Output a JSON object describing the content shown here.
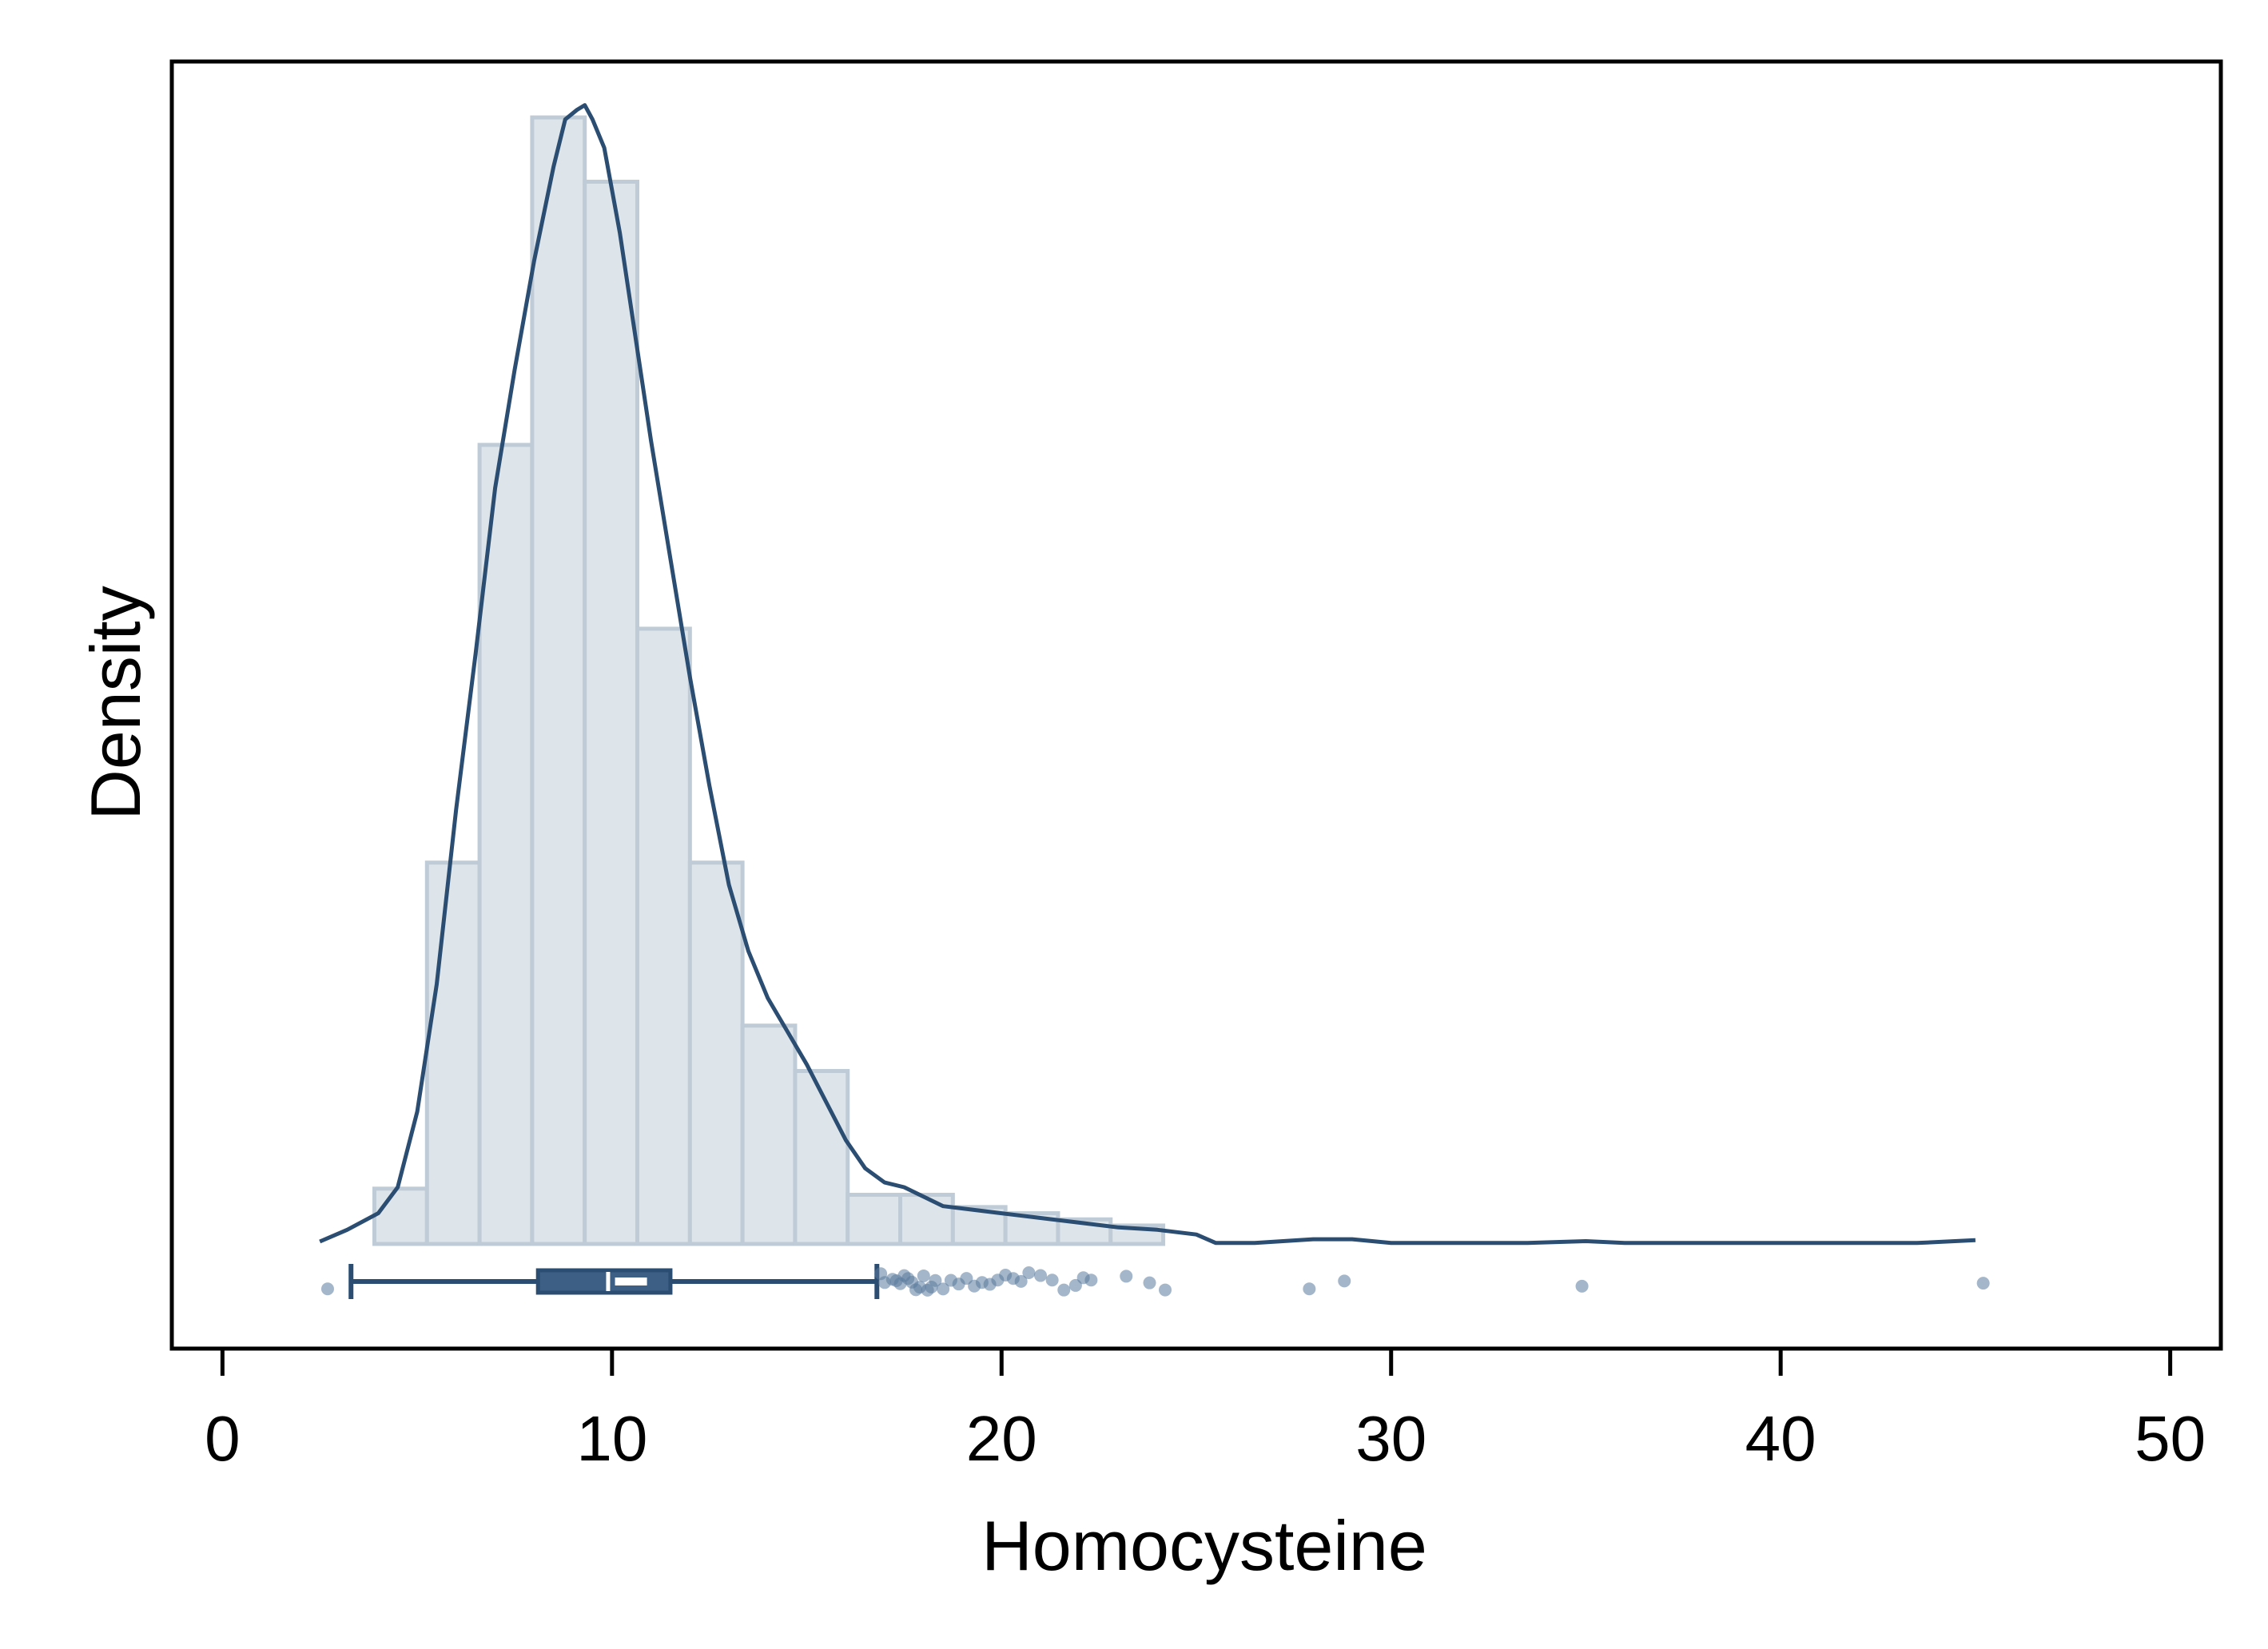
{
  "chart_data": {
    "type": "histogram",
    "title": "",
    "xlabel": "Homocysteine",
    "ylabel": "Density",
    "xlim": [
      -1.3,
      51.3
    ],
    "x_ticks": [
      0,
      10,
      20,
      30,
      40,
      50
    ],
    "x_tick_labels": [
      "0",
      "10",
      "20",
      "30",
      "40",
      "50"
    ],
    "y_ticks_shown": false,
    "grid": false,
    "legend": "none",
    "colors": {
      "bar_fill": "#dde4ea",
      "bar_stroke": "#bfcbd6",
      "line": "#2b4d72",
      "box_fill": "#3d5f85",
      "points": "#5a7a9c"
    },
    "histogram": {
      "bin_edges": [
        3.9,
        5.25,
        6.6,
        7.95,
        9.3,
        10.65,
        12.0,
        13.35,
        14.7,
        16.05,
        17.4,
        18.75,
        20.1,
        21.45,
        22.8,
        24.15
      ],
      "density": [
        0.0117,
        0.0807,
        0.1691,
        0.2384,
        0.2248,
        0.1302,
        0.0807,
        0.0462,
        0.0366,
        0.0104,
        0.0104,
        0.0078,
        0.0065,
        0.0052,
        0.0039
      ]
    },
    "kde": {
      "x": [
        2.5,
        3.2,
        4.0,
        4.5,
        5.0,
        5.5,
        6.0,
        6.5,
        7.0,
        7.5,
        8.0,
        8.5,
        8.8,
        9.1,
        9.3,
        9.5,
        9.8,
        10.2,
        10.6,
        11.0,
        11.5,
        12.0,
        12.5,
        13.0,
        13.5,
        14.0,
        14.5,
        15.0,
        15.5,
        16.0,
        16.5,
        17.0,
        17.5,
        18.0,
        18.5,
        19.0,
        20.0,
        21.0,
        22.0,
        23.0,
        24.0,
        25.0,
        25.5,
        26.5,
        28.0,
        29.0,
        30.0,
        32.0,
        33.5,
        35.0,
        36.0,
        40.0,
        43.5,
        45.0
      ],
      "y": [
        0.0005,
        0.003,
        0.0065,
        0.012,
        0.028,
        0.055,
        0.092,
        0.125,
        0.16,
        0.185,
        0.208,
        0.228,
        0.238,
        0.24,
        0.241,
        0.238,
        0.232,
        0.214,
        0.192,
        0.17,
        0.145,
        0.12,
        0.097,
        0.076,
        0.062,
        0.052,
        0.045,
        0.038,
        0.03,
        0.022,
        0.016,
        0.013,
        0.012,
        0.01,
        0.008,
        0.0075,
        0.0065,
        0.0055,
        0.0045,
        0.0035,
        0.003,
        0.002,
        0.0002,
        0.0002,
        0.001,
        0.001,
        0.0002,
        0.0002,
        0.0002,
        0.0006,
        0.0002,
        0.0002,
        0.0002,
        0.0008
      ]
    },
    "boxplot": {
      "whisker_low": 3.3,
      "q1": 8.1,
      "median": 9.9,
      "mean": 10.2,
      "q3": 11.5,
      "whisker_high": 16.8,
      "outliers": [
        2.7,
        16.9,
        17.0,
        17.2,
        17.3,
        17.4,
        17.5,
        17.6,
        17.7,
        17.8,
        17.9,
        18.0,
        18.1,
        18.2,
        18.3,
        18.5,
        18.7,
        18.9,
        19.1,
        19.3,
        19.5,
        19.7,
        19.9,
        20.1,
        20.3,
        20.5,
        20.7,
        21.0,
        21.3,
        21.6,
        21.9,
        22.1,
        22.3,
        23.2,
        23.8,
        24.2,
        27.9,
        28.8,
        34.9,
        45.2
      ]
    }
  }
}
